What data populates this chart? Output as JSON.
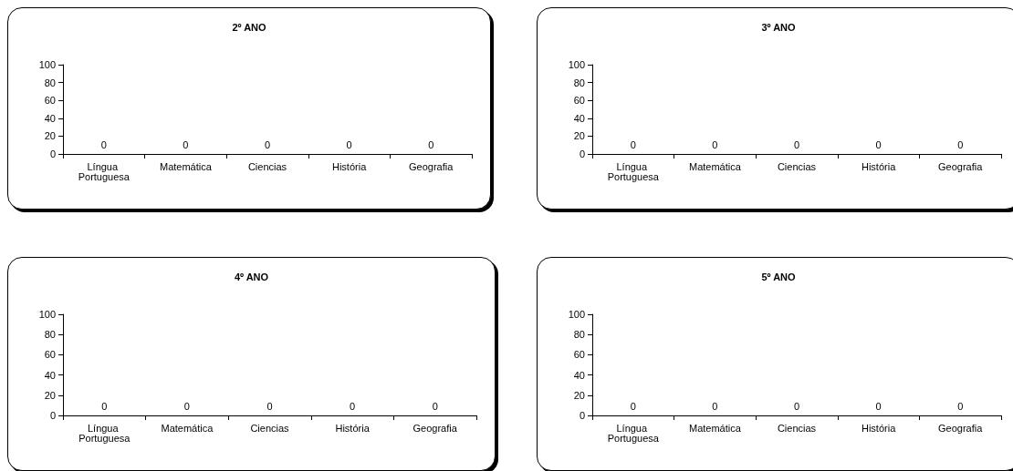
{
  "chart_data": [
    {
      "type": "bar",
      "title": "2º ANO",
      "categories": [
        "Língua Portuguesa",
        "Matemática",
        "Ciencias",
        "História",
        "Geografia"
      ],
      "values": [
        0,
        0,
        0,
        0,
        0
      ],
      "ylim": [
        0,
        100
      ],
      "yticks": [
        0,
        20,
        40,
        60,
        80,
        100
      ],
      "data_labels": true,
      "grid": false
    },
    {
      "type": "bar",
      "title": "3º ANO",
      "categories": [
        "Língua Portuguesa",
        "Matemática",
        "Ciencias",
        "História",
        "Geografia"
      ],
      "values": [
        0,
        0,
        0,
        0,
        0
      ],
      "ylim": [
        0,
        100
      ],
      "yticks": [
        0,
        20,
        40,
        60,
        80,
        100
      ],
      "data_labels": true,
      "grid": false
    },
    {
      "type": "bar",
      "title": "4º ANO",
      "categories": [
        "Língua Portuguesa",
        "Matemática",
        "Ciencias",
        "História",
        "Geografia"
      ],
      "values": [
        0,
        0,
        0,
        0,
        0
      ],
      "ylim": [
        0,
        100
      ],
      "yticks": [
        0,
        20,
        40,
        60,
        80,
        100
      ],
      "data_labels": true,
      "grid": false
    },
    {
      "type": "bar",
      "title": "5º ANO",
      "categories": [
        "Língua Portuguesa",
        "Matemática",
        "Ciencias",
        "História",
        "Geografia"
      ],
      "values": [
        0,
        0,
        0,
        0,
        0
      ],
      "ylim": [
        0,
        100
      ],
      "yticks": [
        0,
        20,
        40,
        60,
        80,
        100
      ],
      "data_labels": true,
      "grid": false
    }
  ]
}
